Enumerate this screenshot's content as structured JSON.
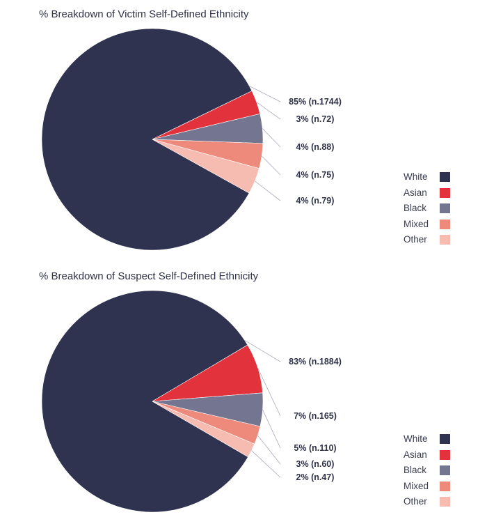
{
  "colors": {
    "White": "#30334f",
    "Asian": "#e2323c",
    "Black": "#747590",
    "Mixed": "#ee8a7c",
    "Other": "#f6bcb1",
    "leader": "#a9aabb"
  },
  "chart_data": [
    {
      "type": "pie",
      "title": "% Breakdown of Victim Self-Defined Ethnicity",
      "slices": [
        {
          "category": "White",
          "percent": 85,
          "count": 1744,
          "label": "85% (n.1744)"
        },
        {
          "category": "Asian",
          "percent": 3,
          "count": 72,
          "label": "3% (n.72)"
        },
        {
          "category": "Black",
          "percent": 4,
          "count": 88,
          "label": "4% (n.88)"
        },
        {
          "category": "Mixed",
          "percent": 4,
          "count": 75,
          "label": "4% (n.75)"
        },
        {
          "category": "Other",
          "percent": 4,
          "count": 79,
          "label": "4% (n.79)"
        }
      ],
      "legend": [
        "White",
        "Asian",
        "Black",
        "Mixed",
        "Other"
      ],
      "legend_position": "right"
    },
    {
      "type": "pie",
      "title": "% Breakdown of Suspect Self-Defined Ethnicity",
      "slices": [
        {
          "category": "White",
          "percent": 83,
          "count": 1884,
          "label": "83% (n.1884)"
        },
        {
          "category": "Asian",
          "percent": 7,
          "count": 165,
          "label": "7% (n.165)"
        },
        {
          "category": "Black",
          "percent": 5,
          "count": 110,
          "label": "5% (n.110)"
        },
        {
          "category": "Mixed",
          "percent": 3,
          "count": 60,
          "label": "3% (n.60)"
        },
        {
          "category": "Other",
          "percent": 2,
          "count": 47,
          "label": "2% (n.47)"
        }
      ],
      "legend": [
        "White",
        "Asian",
        "Black",
        "Mixed",
        "Other"
      ],
      "legend_position": "right"
    }
  ]
}
